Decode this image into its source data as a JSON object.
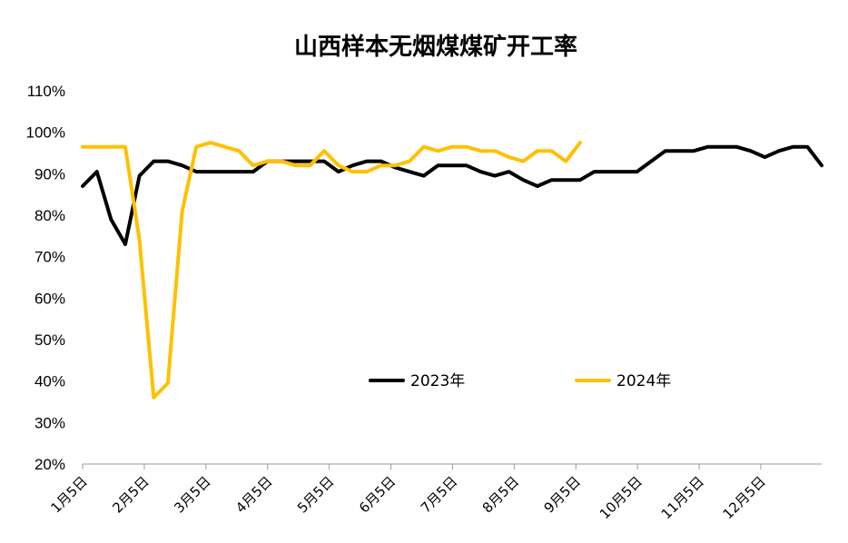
{
  "chart_data": {
    "type": "line",
    "title": "山西样本无烟煤煤矿开工率",
    "xlabel": "",
    "ylabel": "",
    "ylim": [
      20,
      110
    ],
    "y_ticks": [
      "20%",
      "30%",
      "40%",
      "50%",
      "60%",
      "70%",
      "80%",
      "90%",
      "100%",
      "110%"
    ],
    "x_ticks": [
      "1月5日",
      "2月5日",
      "3月5日",
      "4月5日",
      "5月5日",
      "6月5日",
      "7月5日",
      "8月5日",
      "9月5日",
      "10月5日",
      "11月5日",
      "12月5日"
    ],
    "grid": false,
    "legend_position": "bottom-center",
    "series": [
      {
        "name": "2023年",
        "color": "#000000",
        "values": [
          87,
          90.5,
          79,
          73,
          89.5,
          93,
          93,
          92,
          90.5,
          90.5,
          90.5,
          90.5,
          90.5,
          93,
          93,
          93,
          93,
          93,
          90.5,
          92,
          93,
          93,
          91.5,
          90.5,
          89.5,
          92,
          92,
          92,
          90.5,
          89.5,
          90.5,
          88.5,
          87,
          88.5,
          88.5,
          88.5,
          90.5,
          90.5,
          90.5,
          90.5,
          93,
          95.5,
          95.5,
          95.5,
          96.5,
          96.5,
          96.5,
          95.5,
          94,
          95.5,
          96.5,
          96.5,
          92
        ]
      },
      {
        "name": "2024年",
        "color": "#FFC000",
        "values": [
          96.5,
          96.5,
          96.5,
          96.5,
          74,
          36,
          39.5,
          81,
          96.5,
          97.5,
          96.5,
          95.5,
          92,
          93,
          93,
          92,
          92,
          95.5,
          92,
          90.5,
          90.5,
          92,
          92,
          93,
          96.5,
          95.5,
          96.5,
          96.5,
          95.5,
          95.5,
          94,
          93,
          95.5,
          95.5,
          93,
          97.5
        ]
      }
    ]
  }
}
